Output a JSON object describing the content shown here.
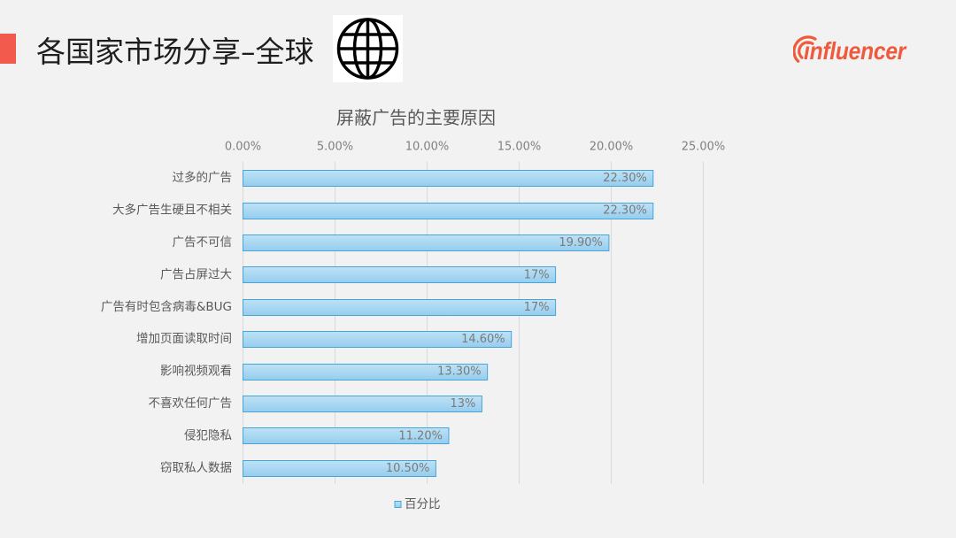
{
  "page": {
    "background": "#f2f2f2"
  },
  "header": {
    "title": "各国家市场分享–全球",
    "accent_color": "#f25a4d",
    "title_color": "#1e1e1e",
    "globe_icon": "globe-icon"
  },
  "logo": {
    "text": "influencer",
    "icon": "signal-arcs-icon",
    "color": "#f05a3c"
  },
  "chart_data": {
    "type": "bar",
    "orientation": "horizontal",
    "title": "屏蔽广告的主要原因",
    "categories": [
      "过多的广告",
      "大多广告生硬且不相关",
      "广告不可信",
      "广告占屏过大",
      "广告有时包含病毒&BUG",
      "增加页面读取时间",
      "影响视频观看",
      "不喜欢任何广告",
      "侵犯隐私",
      "窃取私人数据"
    ],
    "series": [
      {
        "name": "百分比",
        "values": [
          22.3,
          22.3,
          19.9,
          17,
          17,
          14.6,
          13.3,
          13,
          11.2,
          10.5
        ],
        "data_labels": [
          "22.30%",
          "22.30%",
          "19.90%",
          "17%",
          "17%",
          "14.60%",
          "13.30%",
          "13%",
          "11.20%",
          "10.50%"
        ]
      }
    ],
    "xlim": [
      0,
      25
    ],
    "x_tick_labels": [
      "0.00%",
      "5.00%",
      "10.00%",
      "15.00%",
      "20.00%",
      "25.00%"
    ],
    "x_axis_position": "top",
    "grid": true,
    "legend": "bottom",
    "colors": {
      "bar_fill_top": "#bde2f6",
      "bar_fill_bottom": "#96cdee",
      "bar_stroke": "#45a5d9",
      "gridline": "#d9d9d9",
      "tick_label": "#808080",
      "category_label": "#595959",
      "data_label": "#7a7a7a",
      "title": "#595959",
      "legend_label": "#595959"
    }
  }
}
